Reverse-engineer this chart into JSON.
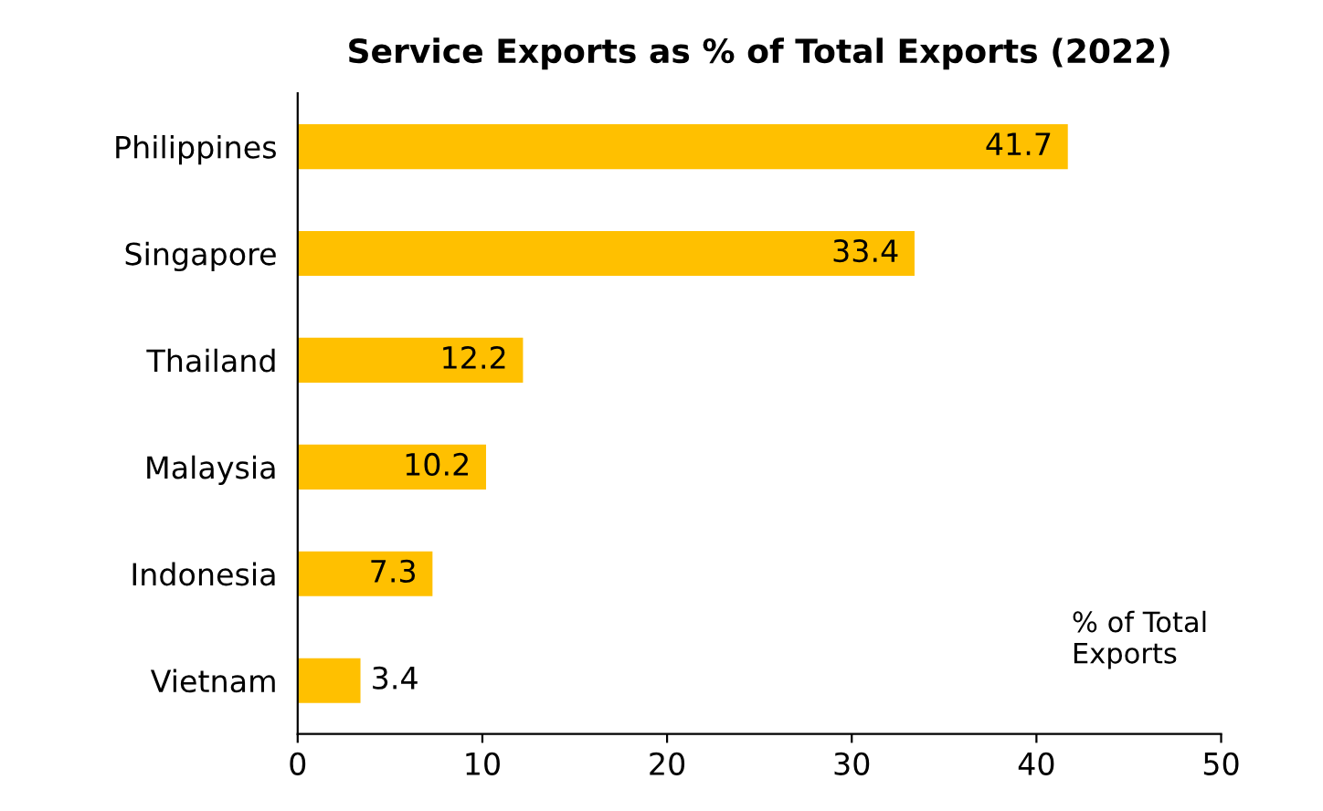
{
  "chart_data": {
    "type": "bar",
    "orientation": "horizontal",
    "title": "Service Exports as % of Total Exports (2022)",
    "categories": [
      "Philippines",
      "Singapore",
      "Thailand",
      "Malaysia",
      "Indonesia",
      "Vietnam"
    ],
    "values": [
      41.7,
      33.4,
      12.2,
      10.2,
      7.3,
      3.4
    ],
    "color": "#ffc000",
    "xlim": [
      0,
      50
    ],
    "xticks": [
      0,
      10,
      20,
      30,
      40,
      50
    ],
    "data_labels": true,
    "grid": false,
    "legend": false,
    "annotations": [
      "% of Total\nExports"
    ]
  }
}
